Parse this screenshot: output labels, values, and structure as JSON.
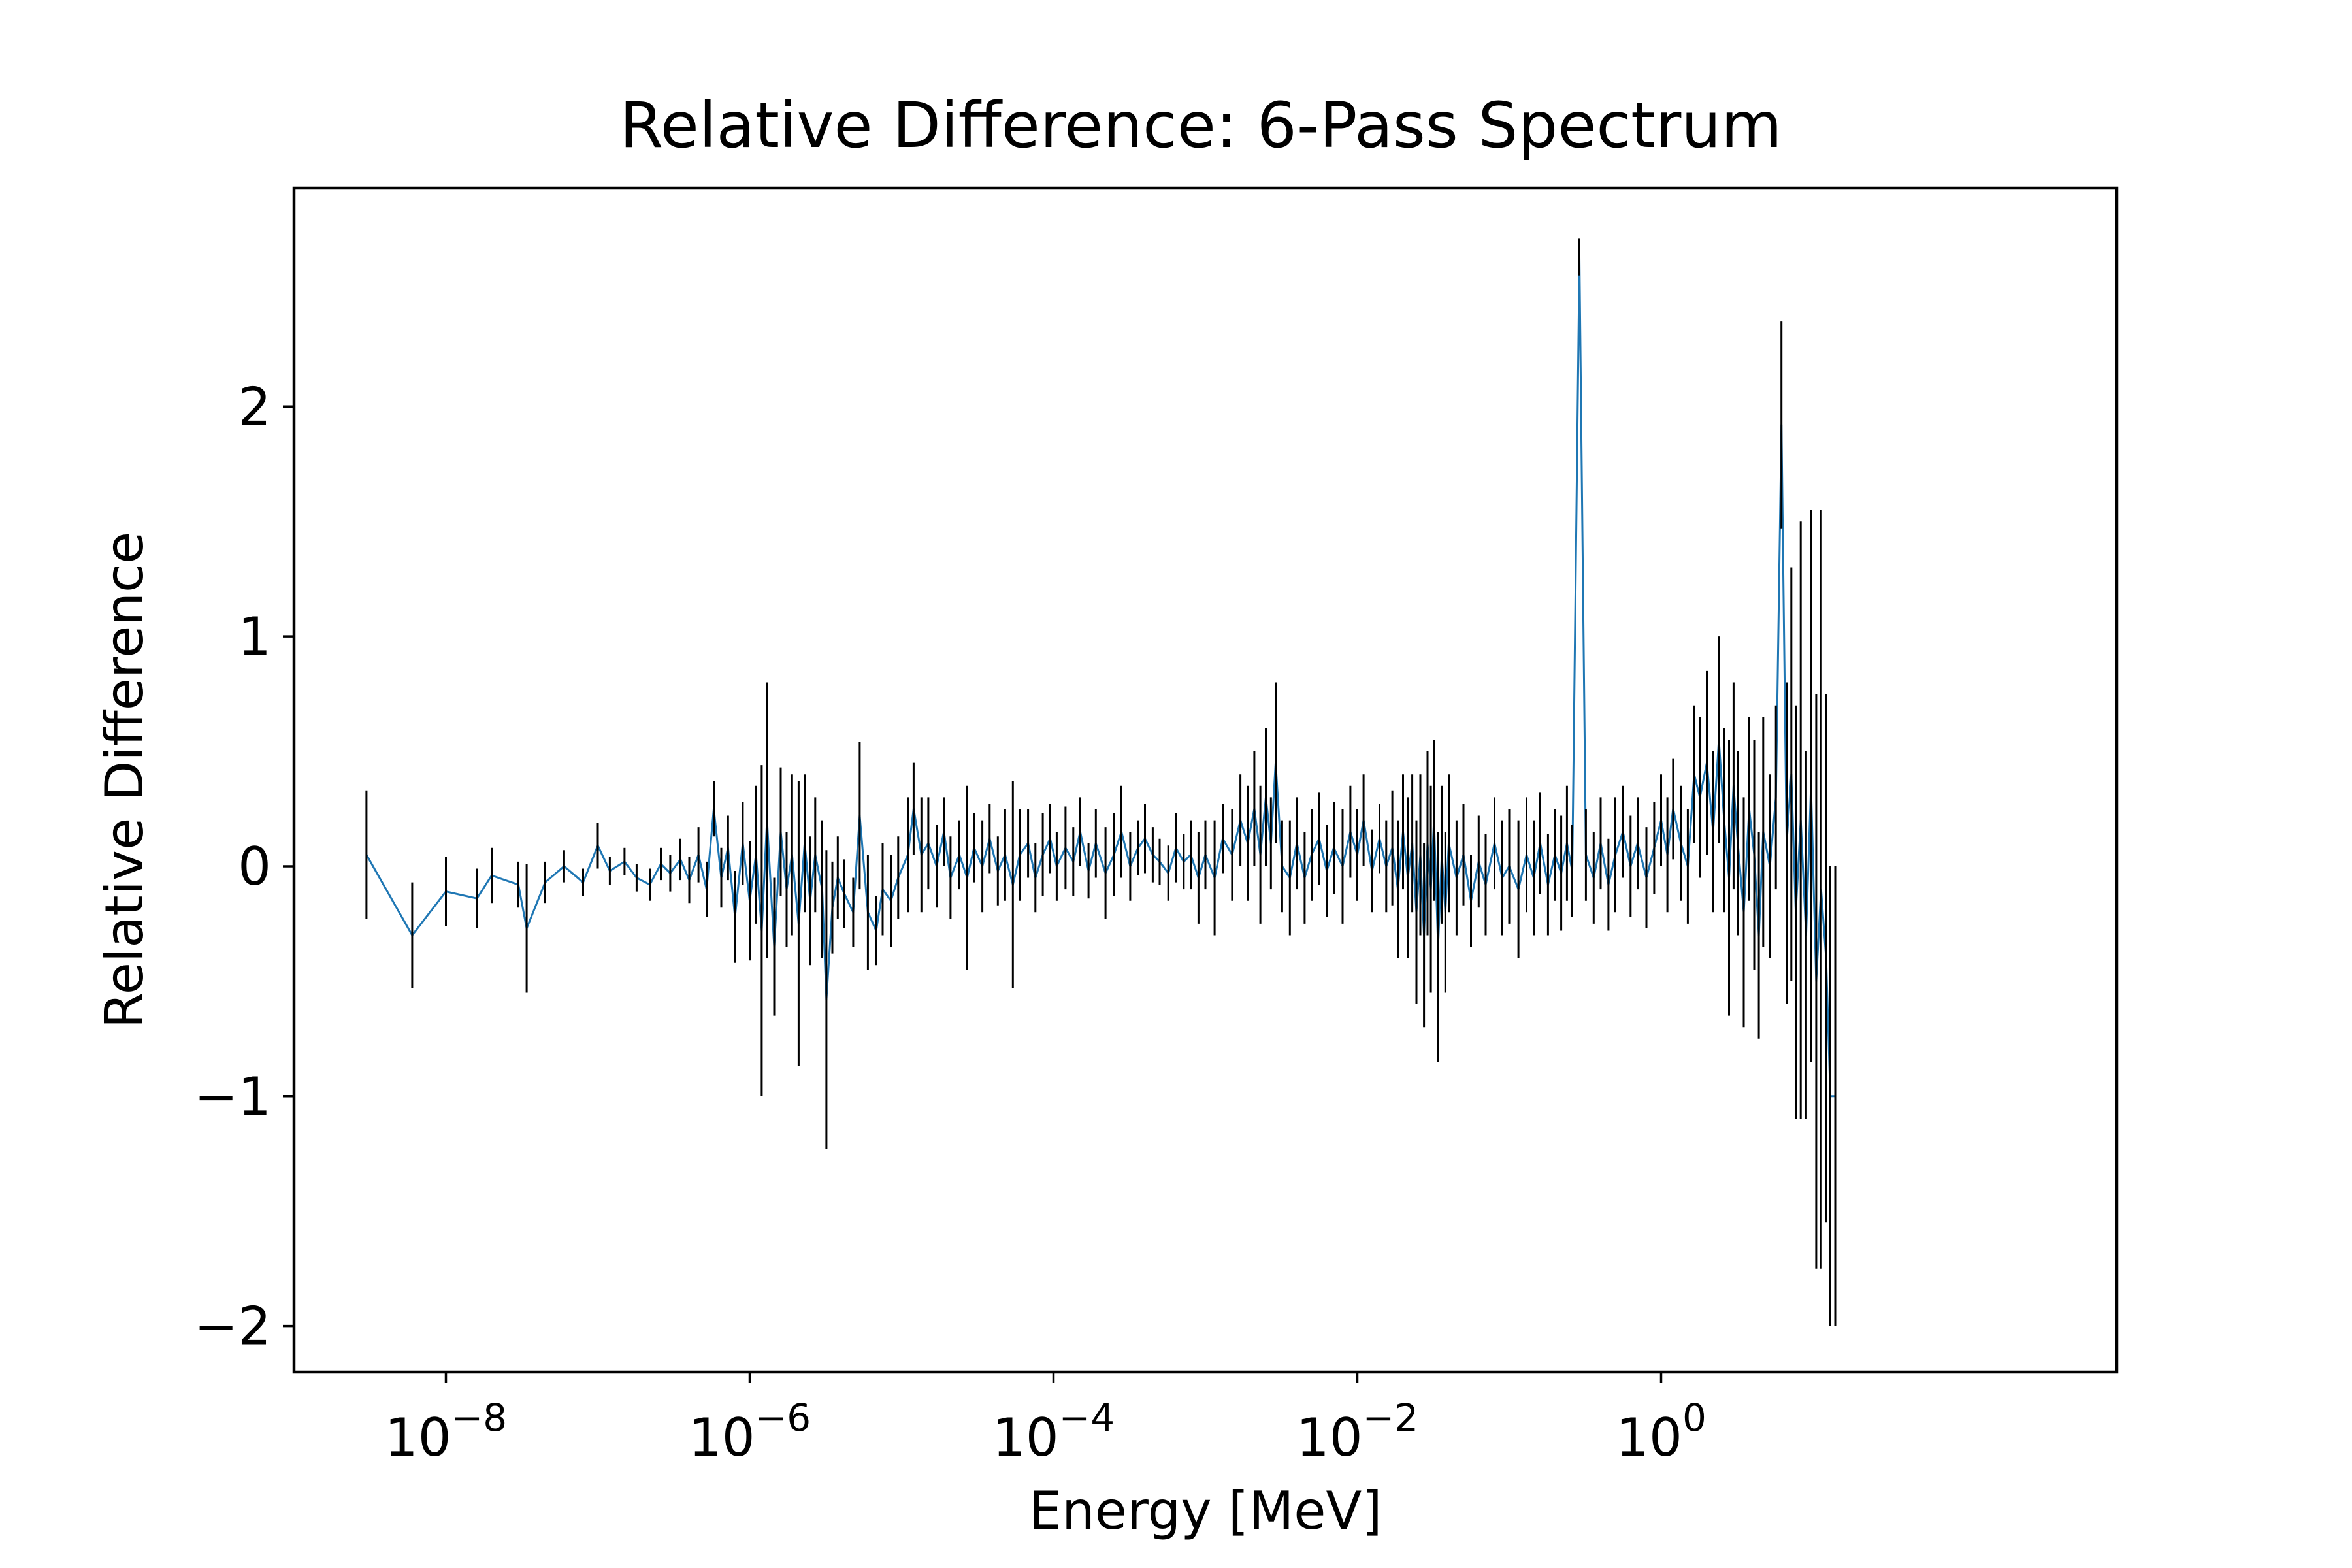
{
  "chart_data": {
    "type": "line",
    "title": "Relative Difference: 6-Pass Spectrum",
    "xlabel": "Energy [MeV]",
    "ylabel": "Relative Difference",
    "x_scale": "log",
    "xlim": [
      1e-09,
      1000
    ],
    "ylim": [
      -2.2,
      2.95
    ],
    "x_ticks": [
      {
        "value": 1e-08,
        "base": "10",
        "exp": "−8"
      },
      {
        "value": 1e-06,
        "base": "10",
        "exp": "−6"
      },
      {
        "value": 0.0001,
        "base": "10",
        "exp": "−4"
      },
      {
        "value": 0.01,
        "base": "10",
        "exp": "−2"
      },
      {
        "value": 1,
        "base": "10",
        "exp": "0"
      }
    ],
    "y_ticks": [
      {
        "value": 2,
        "label": "2"
      },
      {
        "value": 1,
        "label": "1"
      },
      {
        "value": 0,
        "label": "0"
      },
      {
        "value": -1,
        "label": "−1"
      },
      {
        "value": -2,
        "label": "−2"
      }
    ],
    "grid": false,
    "legend": "none",
    "colors": {
      "line": "#1f77b4",
      "errorbar": "#000000",
      "axes": "#000000"
    },
    "series": [
      {
        "style": "line-with-errorbars",
        "points": [
          {
            "x": 3e-09,
            "y": 0.05,
            "err": 0.28
          },
          {
            "x": 6e-09,
            "y": -0.3,
            "err": 0.23
          },
          {
            "x": 1e-08,
            "y": -0.11,
            "err": 0.15
          },
          {
            "x": 1.6e-08,
            "y": -0.14,
            "err": 0.13
          },
          {
            "x": 2e-08,
            "y": -0.04,
            "err": 0.12
          },
          {
            "x": 3e-08,
            "y": -0.08,
            "err": 0.1
          },
          {
            "x": 3.4e-08,
            "y": -0.27,
            "err": 0.28
          },
          {
            "x": 4.5e-08,
            "y": -0.07,
            "err": 0.09
          },
          {
            "x": 6e-08,
            "y": 0.0,
            "err": 0.07
          },
          {
            "x": 8e-08,
            "y": -0.07,
            "err": 0.06
          },
          {
            "x": 1e-07,
            "y": 0.09,
            "err": 0.1
          },
          {
            "x": 1.2e-07,
            "y": -0.02,
            "err": 0.06
          },
          {
            "x": 1.5e-07,
            "y": 0.02,
            "err": 0.06
          },
          {
            "x": 1.8e-07,
            "y": -0.05,
            "err": 0.06
          },
          {
            "x": 2.2e-07,
            "y": -0.08,
            "err": 0.07
          },
          {
            "x": 2.6e-07,
            "y": 0.01,
            "err": 0.07
          },
          {
            "x": 3e-07,
            "y": -0.03,
            "err": 0.08
          },
          {
            "x": 3.5e-07,
            "y": 0.03,
            "err": 0.09
          },
          {
            "x": 4e-07,
            "y": -0.06,
            "err": 0.1
          },
          {
            "x": 4.6e-07,
            "y": 0.05,
            "err": 0.12
          },
          {
            "x": 5.2e-07,
            "y": -0.1,
            "err": 0.12
          },
          {
            "x": 5.8e-07,
            "y": 0.25,
            "err": 0.12
          },
          {
            "x": 6.5e-07,
            "y": -0.05,
            "err": 0.13
          },
          {
            "x": 7.2e-07,
            "y": 0.08,
            "err": 0.14
          },
          {
            "x": 8e-07,
            "y": -0.22,
            "err": 0.2
          },
          {
            "x": 9e-07,
            "y": 0.1,
            "err": 0.18
          },
          {
            "x": 1e-06,
            "y": -0.15,
            "err": 0.26
          },
          {
            "x": 1.1e-06,
            "y": 0.05,
            "err": 0.3
          },
          {
            "x": 1.2e-06,
            "y": -0.28,
            "err": 0.72
          },
          {
            "x": 1.3e-06,
            "y": 0.2,
            "err": 0.6
          },
          {
            "x": 1.45e-06,
            "y": -0.35,
            "err": 0.3
          },
          {
            "x": 1.6e-06,
            "y": 0.15,
            "err": 0.28
          },
          {
            "x": 1.75e-06,
            "y": -0.1,
            "err": 0.25
          },
          {
            "x": 1.9e-06,
            "y": 0.05,
            "err": 0.35
          },
          {
            "x": 2.1e-06,
            "y": -0.25,
            "err": 0.62
          },
          {
            "x": 2.3e-06,
            "y": 0.1,
            "err": 0.3
          },
          {
            "x": 2.5e-06,
            "y": -0.15,
            "err": 0.28
          },
          {
            "x": 2.7e-06,
            "y": 0.05,
            "err": 0.25
          },
          {
            "x": 3e-06,
            "y": -0.1,
            "err": 0.3
          },
          {
            "x": 3.2e-06,
            "y": -0.58,
            "err": 0.65
          },
          {
            "x": 3.5e-06,
            "y": -0.18,
            "err": 0.2
          },
          {
            "x": 3.8e-06,
            "y": -0.05,
            "err": 0.18
          },
          {
            "x": 4.2e-06,
            "y": -0.12,
            "err": 0.15
          },
          {
            "x": 4.8e-06,
            "y": -0.2,
            "err": 0.15
          },
          {
            "x": 5.3e-06,
            "y": 0.22,
            "err": 0.32
          },
          {
            "x": 6e-06,
            "y": -0.2,
            "err": 0.25
          },
          {
            "x": 6.8e-06,
            "y": -0.28,
            "err": 0.15
          },
          {
            "x": 7.5e-06,
            "y": -0.1,
            "err": 0.2
          },
          {
            "x": 8.5e-06,
            "y": -0.15,
            "err": 0.2
          },
          {
            "x": 9.5e-06,
            "y": -0.05,
            "err": 0.18
          },
          {
            "x": 1.1e-05,
            "y": 0.05,
            "err": 0.25
          },
          {
            "x": 1.2e-05,
            "y": 0.25,
            "err": 0.2
          },
          {
            "x": 1.35e-05,
            "y": 0.05,
            "err": 0.25
          },
          {
            "x": 1.5e-05,
            "y": 0.1,
            "err": 0.2
          },
          {
            "x": 1.7e-05,
            "y": 0.0,
            "err": 0.18
          },
          {
            "x": 1.9e-05,
            "y": 0.15,
            "err": 0.15
          },
          {
            "x": 2.1e-05,
            "y": -0.05,
            "err": 0.18
          },
          {
            "x": 2.4e-05,
            "y": 0.05,
            "err": 0.15
          },
          {
            "x": 2.7e-05,
            "y": -0.05,
            "err": 0.4
          },
          {
            "x": 3e-05,
            "y": 0.08,
            "err": 0.15
          },
          {
            "x": 3.4e-05,
            "y": 0.0,
            "err": 0.2
          },
          {
            "x": 3.8e-05,
            "y": 0.12,
            "err": 0.15
          },
          {
            "x": 4.3e-05,
            "y": -0.02,
            "err": 0.15
          },
          {
            "x": 4.8e-05,
            "y": 0.05,
            "err": 0.2
          },
          {
            "x": 5.4e-05,
            "y": -0.08,
            "err": 0.45
          },
          {
            "x": 6e-05,
            "y": 0.05,
            "err": 0.2
          },
          {
            "x": 6.8e-05,
            "y": 0.1,
            "err": 0.15
          },
          {
            "x": 7.6e-05,
            "y": -0.05,
            "err": 0.15
          },
          {
            "x": 8.5e-05,
            "y": 0.05,
            "err": 0.18
          },
          {
            "x": 9.5e-05,
            "y": 0.12,
            "err": 0.15
          },
          {
            "x": 0.000105,
            "y": 0.0,
            "err": 0.15
          },
          {
            "x": 0.00012,
            "y": 0.08,
            "err": 0.18
          },
          {
            "x": 0.000135,
            "y": 0.02,
            "err": 0.15
          },
          {
            "x": 0.00015,
            "y": 0.15,
            "err": 0.15
          },
          {
            "x": 0.00017,
            "y": -0.02,
            "err": 0.12
          },
          {
            "x": 0.00019,
            "y": 0.1,
            "err": 0.15
          },
          {
            "x": 0.00022,
            "y": -0.03,
            "err": 0.2
          },
          {
            "x": 0.00025,
            "y": 0.05,
            "err": 0.18
          },
          {
            "x": 0.00028,
            "y": 0.15,
            "err": 0.2
          },
          {
            "x": 0.00032,
            "y": 0.0,
            "err": 0.15
          },
          {
            "x": 0.00036,
            "y": 0.08,
            "err": 0.12
          },
          {
            "x": 0.0004,
            "y": 0.12,
            "err": 0.15
          },
          {
            "x": 0.00045,
            "y": 0.05,
            "err": 0.12
          },
          {
            "x": 0.0005,
            "y": 0.02,
            "err": 0.1
          },
          {
            "x": 0.00057,
            "y": -0.03,
            "err": 0.12
          },
          {
            "x": 0.00064,
            "y": 0.08,
            "err": 0.15
          },
          {
            "x": 0.00072,
            "y": 0.02,
            "err": 0.12
          },
          {
            "x": 0.0008,
            "y": 0.05,
            "err": 0.15
          },
          {
            "x": 0.0009,
            "y": -0.05,
            "err": 0.2
          },
          {
            "x": 0.001,
            "y": 0.05,
            "err": 0.15
          },
          {
            "x": 0.00115,
            "y": -0.05,
            "err": 0.25
          },
          {
            "x": 0.0013,
            "y": 0.12,
            "err": 0.15
          },
          {
            "x": 0.0015,
            "y": 0.05,
            "err": 0.2
          },
          {
            "x": 0.0017,
            "y": 0.2,
            "err": 0.2
          },
          {
            "x": 0.0019,
            "y": 0.1,
            "err": 0.25
          },
          {
            "x": 0.0021,
            "y": 0.25,
            "err": 0.25
          },
          {
            "x": 0.0023,
            "y": 0.05,
            "err": 0.3
          },
          {
            "x": 0.0025,
            "y": 0.3,
            "err": 0.3
          },
          {
            "x": 0.0027,
            "y": 0.1,
            "err": 0.2
          },
          {
            "x": 0.0029,
            "y": 0.45,
            "err": 0.35
          },
          {
            "x": 0.0032,
            "y": 0.0,
            "err": 0.2
          },
          {
            "x": 0.0036,
            "y": -0.05,
            "err": 0.25
          },
          {
            "x": 0.004,
            "y": 0.1,
            "err": 0.2
          },
          {
            "x": 0.0045,
            "y": -0.05,
            "err": 0.2
          },
          {
            "x": 0.005,
            "y": 0.05,
            "err": 0.2
          },
          {
            "x": 0.0056,
            "y": 0.12,
            "err": 0.2
          },
          {
            "x": 0.0063,
            "y": -0.02,
            "err": 0.2
          },
          {
            "x": 0.007,
            "y": 0.08,
            "err": 0.2
          },
          {
            "x": 0.008,
            "y": 0.0,
            "err": 0.25
          },
          {
            "x": 0.009,
            "y": 0.15,
            "err": 0.2
          },
          {
            "x": 0.01,
            "y": 0.05,
            "err": 0.2
          },
          {
            "x": 0.011,
            "y": 0.2,
            "err": 0.2
          },
          {
            "x": 0.0125,
            "y": -0.02,
            "err": 0.18
          },
          {
            "x": 0.014,
            "y": 0.12,
            "err": 0.15
          },
          {
            "x": 0.0155,
            "y": 0.0,
            "err": 0.2
          },
          {
            "x": 0.017,
            "y": 0.08,
            "err": 0.25
          },
          {
            "x": 0.0185,
            "y": -0.1,
            "err": 0.3
          },
          {
            "x": 0.02,
            "y": 0.15,
            "err": 0.25
          },
          {
            "x": 0.0215,
            "y": -0.05,
            "err": 0.35
          },
          {
            "x": 0.023,
            "y": 0.1,
            "err": 0.3
          },
          {
            "x": 0.0245,
            "y": -0.2,
            "err": 0.4
          },
          {
            "x": 0.026,
            "y": 0.05,
            "err": 0.35
          },
          {
            "x": 0.0275,
            "y": -0.3,
            "err": 0.4
          },
          {
            "x": 0.029,
            "y": 0.1,
            "err": 0.4
          },
          {
            "x": 0.0305,
            "y": -0.1,
            "err": 0.45
          },
          {
            "x": 0.032,
            "y": 0.2,
            "err": 0.35
          },
          {
            "x": 0.034,
            "y": -0.35,
            "err": 0.5
          },
          {
            "x": 0.036,
            "y": 0.05,
            "err": 0.3
          },
          {
            "x": 0.038,
            "y": -0.2,
            "err": 0.35
          },
          {
            "x": 0.04,
            "y": 0.1,
            "err": 0.3
          },
          {
            "x": 0.045,
            "y": -0.05,
            "err": 0.25
          },
          {
            "x": 0.05,
            "y": 0.05,
            "err": 0.22
          },
          {
            "x": 0.056,
            "y": -0.15,
            "err": 0.2
          },
          {
            "x": 0.063,
            "y": 0.02,
            "err": 0.2
          },
          {
            "x": 0.07,
            "y": -0.08,
            "err": 0.22
          },
          {
            "x": 0.08,
            "y": 0.1,
            "err": 0.2
          },
          {
            "x": 0.09,
            "y": -0.05,
            "err": 0.25
          },
          {
            "x": 0.1,
            "y": 0.0,
            "err": 0.25
          },
          {
            "x": 0.115,
            "y": -0.1,
            "err": 0.3
          },
          {
            "x": 0.13,
            "y": 0.05,
            "err": 0.25
          },
          {
            "x": 0.145,
            "y": -0.05,
            "err": 0.25
          },
          {
            "x": 0.16,
            "y": 0.1,
            "err": 0.22
          },
          {
            "x": 0.18,
            "y": -0.08,
            "err": 0.22
          },
          {
            "x": 0.2,
            "y": 0.05,
            "err": 0.2
          },
          {
            "x": 0.22,
            "y": -0.03,
            "err": 0.25
          },
          {
            "x": 0.24,
            "y": 0.1,
            "err": 0.25
          },
          {
            "x": 0.26,
            "y": -0.02,
            "err": 0.2
          },
          {
            "x": 0.29,
            "y": 2.65,
            "err": 0.08
          },
          {
            "x": 0.32,
            "y": 0.05,
            "err": 0.2
          },
          {
            "x": 0.36,
            "y": -0.05,
            "err": 0.2
          },
          {
            "x": 0.4,
            "y": 0.1,
            "err": 0.2
          },
          {
            "x": 0.45,
            "y": -0.08,
            "err": 0.2
          },
          {
            "x": 0.5,
            "y": 0.05,
            "err": 0.25
          },
          {
            "x": 0.56,
            "y": 0.15,
            "err": 0.2
          },
          {
            "x": 0.63,
            "y": 0.0,
            "err": 0.22
          },
          {
            "x": 0.7,
            "y": 0.1,
            "err": 0.2
          },
          {
            "x": 0.8,
            "y": -0.05,
            "err": 0.22
          },
          {
            "x": 0.9,
            "y": 0.08,
            "err": 0.2
          },
          {
            "x": 1.0,
            "y": 0.2,
            "err": 0.2
          },
          {
            "x": 1.1,
            "y": 0.05,
            "err": 0.25
          },
          {
            "x": 1.2,
            "y": 0.25,
            "err": 0.22
          },
          {
            "x": 1.35,
            "y": 0.1,
            "err": 0.25
          },
          {
            "x": 1.5,
            "y": 0.0,
            "err": 0.25
          },
          {
            "x": 1.65,
            "y": 0.4,
            "err": 0.3
          },
          {
            "x": 1.8,
            "y": 0.3,
            "err": 0.35
          },
          {
            "x": 2.0,
            "y": 0.45,
            "err": 0.4
          },
          {
            "x": 2.2,
            "y": 0.15,
            "err": 0.35
          },
          {
            "x": 2.4,
            "y": 0.55,
            "err": 0.45
          },
          {
            "x": 2.6,
            "y": 0.2,
            "err": 0.4
          },
          {
            "x": 2.8,
            "y": -0.05,
            "err": 0.6
          },
          {
            "x": 3.0,
            "y": 0.35,
            "err": 0.45
          },
          {
            "x": 3.2,
            "y": 0.1,
            "err": 0.4
          },
          {
            "x": 3.5,
            "y": -0.2,
            "err": 0.5
          },
          {
            "x": 3.8,
            "y": 0.25,
            "err": 0.4
          },
          {
            "x": 4.1,
            "y": 0.05,
            "err": 0.5
          },
          {
            "x": 4.4,
            "y": -0.3,
            "err": 0.45
          },
          {
            "x": 4.7,
            "y": 0.15,
            "err": 0.5
          },
          {
            "x": 5.2,
            "y": 0.0,
            "err": 0.4
          },
          {
            "x": 5.7,
            "y": 0.3,
            "err": 0.4
          },
          {
            "x": 6.2,
            "y": 1.92,
            "err": 0.45
          },
          {
            "x": 6.7,
            "y": 0.1,
            "err": 0.7
          },
          {
            "x": 7.2,
            "y": 0.4,
            "err": 0.9
          },
          {
            "x": 7.7,
            "y": -0.2,
            "err": 0.9
          },
          {
            "x": 8.3,
            "y": 0.2,
            "err": 1.3
          },
          {
            "x": 9.0,
            "y": -0.3,
            "err": 0.8
          },
          {
            "x": 9.7,
            "y": 0.35,
            "err": 1.2
          },
          {
            "x": 10.5,
            "y": -0.5,
            "err": 1.25
          },
          {
            "x": 11.3,
            "y": -0.1,
            "err": 1.65
          },
          {
            "x": 12.2,
            "y": -0.4,
            "err": 1.15
          },
          {
            "x": 13.0,
            "y": -1.0,
            "err": 1.0
          },
          {
            "x": 14.0,
            "y": -1.0,
            "err": 1.0
          }
        ]
      }
    ]
  }
}
